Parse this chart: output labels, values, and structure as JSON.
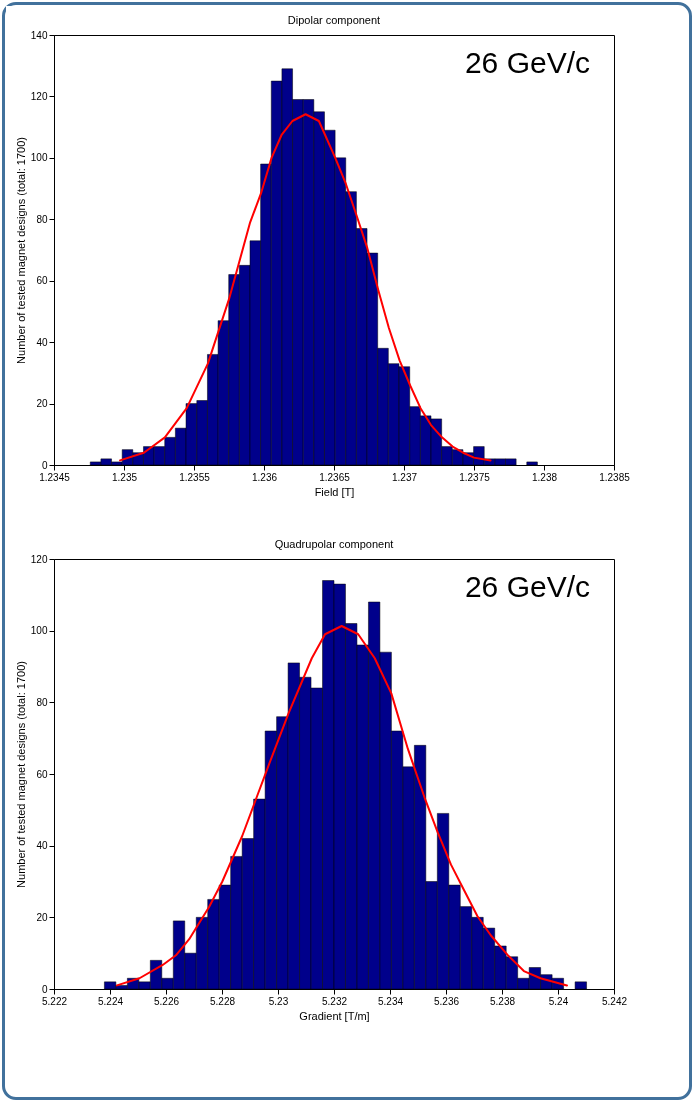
{
  "chart_data": [
    {
      "type": "histogram",
      "title": "Dipolar component",
      "xlabel": "Field [T]",
      "ylabel": "Number of tested magnet designs (total: 1700)",
      "color": "#00008b",
      "bins": [
        1.234759,
        1.234835,
        1.234911,
        1.234987,
        1.235063,
        1.235139,
        1.235215,
        1.235291,
        1.235367,
        1.235443,
        1.23552,
        1.235596,
        1.235672,
        1.235748,
        1.235824,
        1.2359,
        1.235976,
        1.236052,
        1.236128,
        1.236204,
        1.23628,
        1.236356,
        1.236432,
        1.236508,
        1.236584,
        1.23666,
        1.236736,
        1.236812,
        1.236888,
        1.236964,
        1.237041,
        1.237117,
        1.237193,
        1.237269,
        1.237345,
        1.237421,
        1.237497,
        1.237573,
        1.237649,
        1.237725,
        1.237801,
        1.237877,
        1.237953
      ],
      "values": [
        1,
        2,
        1,
        5,
        4,
        6,
        6,
        9,
        12,
        20,
        21,
        36,
        47,
        62,
        65,
        73,
        98,
        125,
        129,
        119,
        119,
        115,
        109,
        100,
        89,
        77,
        69,
        38,
        33,
        32,
        19,
        16,
        15,
        6,
        5,
        4,
        6,
        2,
        2,
        2,
        0,
        1
      ],
      "series": [
        {
          "type": "line",
          "color": "#ff0000",
          "x": [
            1.234972,
            1.235142,
            1.235292,
            1.235448,
            1.235599,
            1.23575,
            1.235901,
            1.235979,
            1.236054,
            1.236127,
            1.236203,
            1.236297,
            1.236392,
            1.236509,
            1.236585,
            1.236663,
            1.236738,
            1.236816,
            1.236892,
            1.236969,
            1.237045,
            1.237118,
            1.237193,
            1.237271,
            1.237347,
            1.237422,
            1.2375,
            1.237618
          ],
          "values": [
            1.5,
            4,
            9,
            18.5,
            33,
            54,
            79,
            88.5,
            100,
            107.6,
            112,
            114.2,
            112,
            100,
            91.5,
            81,
            70.6,
            57,
            44.6,
            34,
            25.8,
            18.5,
            13,
            9,
            6,
            4,
            2.4,
            1.5
          ]
        }
      ],
      "xlim": [
        1.2345,
        1.2385
      ],
      "xticks": [
        1.2345,
        1.235,
        1.2355,
        1.236,
        1.2365,
        1.237,
        1.2375,
        1.238,
        1.2385
      ],
      "ylim": [
        0,
        140
      ],
      "yticks": [
        0,
        20,
        40,
        60,
        80,
        100,
        120,
        140
      ],
      "annotations": [
        "26 GeV/c"
      ]
    },
    {
      "type": "histogram",
      "title": "Quadrupolar component",
      "xlabel": "Gradient [T/m]",
      "ylabel": "Number of tested magnet designs (total: 1700)",
      "color": "#00008b",
      "bins": [
        5.2238,
        5.22421,
        5.22462,
        5.22503,
        5.22544,
        5.22585,
        5.22626,
        5.22667,
        5.22708,
        5.22749,
        5.2279,
        5.22831,
        5.22872,
        5.22913,
        5.22954,
        5.22995,
        5.23036,
        5.23077,
        5.23118,
        5.23159,
        5.232,
        5.23241,
        5.23282,
        5.23323,
        5.23364,
        5.23405,
        5.23446,
        5.23487,
        5.23528,
        5.23569,
        5.2361,
        5.23651,
        5.23692,
        5.23733,
        5.23774,
        5.23815,
        5.23856,
        5.23897,
        5.23938,
        5.23979,
        5.2402,
        5.24061,
        5.24102
      ],
      "values": [
        2,
        1,
        3,
        2,
        8,
        3,
        19,
        10,
        20,
        25,
        29,
        37,
        42,
        53,
        72,
        76,
        91,
        87,
        84,
        114,
        113,
        102,
        96,
        108,
        94,
        72,
        62,
        68,
        30,
        49,
        29,
        23,
        20,
        17,
        12,
        9,
        3,
        6,
        4,
        3,
        0,
        2
      ],
      "series": [
        {
          "type": "line",
          "color": "#ff0000",
          "x": [
            5.224249,
            5.225053,
            5.225882,
            5.226355,
            5.226828,
            5.227538,
            5.228012,
            5.228722,
            5.229195,
            5.229669,
            5.230379,
            5.231207,
            5.23168,
            5.232272,
            5.232864,
            5.233456,
            5.234047,
            5.234639,
            5.235231,
            5.235704,
            5.236178,
            5.236651,
            5.237124,
            5.237598,
            5.238189,
            5.238781,
            5.239373,
            5.24032
          ],
          "values": [
            1,
            3,
            6.7,
            9.4,
            13.9,
            22.9,
            30,
            42.7,
            52.6,
            62.5,
            77,
            92.3,
            99,
            101.3,
            99,
            92.3,
            82.5,
            67,
            53.5,
            43.7,
            34.7,
            27.5,
            20.3,
            15,
            9.6,
            5,
            3,
            1
          ]
        }
      ],
      "xlim": [
        5.222,
        5.242
      ],
      "xticks": [
        5.222,
        5.224,
        5.226,
        5.228,
        5.23,
        5.232,
        5.234,
        5.236,
        5.238,
        5.24,
        5.242
      ],
      "ylim": [
        0,
        120
      ],
      "yticks": [
        0,
        20,
        40,
        60,
        80,
        100,
        120
      ],
      "annotations": [
        "26 GeV/c"
      ]
    }
  ]
}
